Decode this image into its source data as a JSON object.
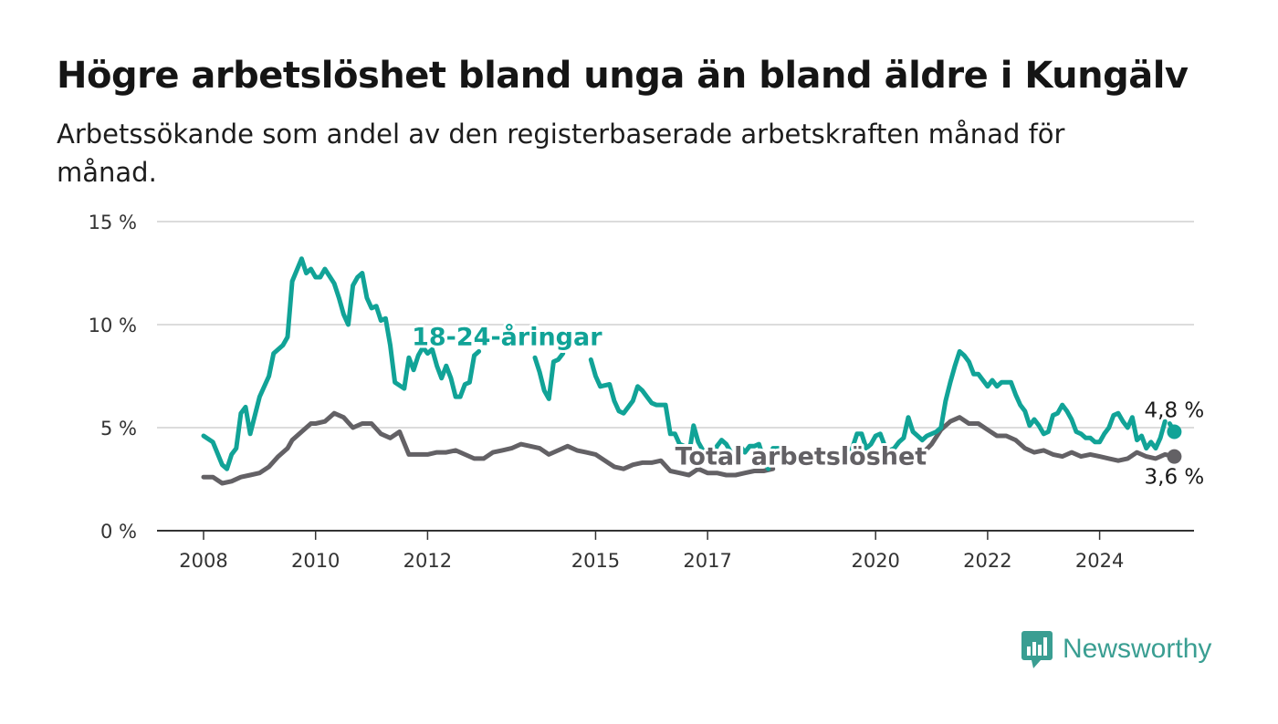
{
  "title": "Högre arbetslöshet bland unga än bland äldre i Kungälv",
  "subtitle": "Arbetssökande som andel av den registerbaserade arbetskraften månad för månad.",
  "brand": {
    "name": "Newsworthy",
    "icon": "newsworthy-logo-icon"
  },
  "chart_data": {
    "type": "line",
    "title": "Högre arbetslöshet bland unga än bland äldre i Kungälv",
    "xlabel": "",
    "ylabel": "",
    "ylim": [
      0,
      15
    ],
    "xlim": [
      "2007-10",
      "2025-08"
    ],
    "y_ticks": [
      {
        "value": 0,
        "label": "0 %"
      },
      {
        "value": 5,
        "label": "5 %"
      },
      {
        "value": 10,
        "label": "10 %"
      },
      {
        "value": 15,
        "label": "15 %"
      }
    ],
    "x_ticks": [
      {
        "value": "2008-01",
        "label": "2008"
      },
      {
        "value": "2010-01",
        "label": "2010"
      },
      {
        "value": "2012-01",
        "label": "2012"
      },
      {
        "value": "2015-01",
        "label": "2015"
      },
      {
        "value": "2017-01",
        "label": "2017"
      },
      {
        "value": "2020-01",
        "label": "2020"
      },
      {
        "value": "2022-01",
        "label": "2022"
      },
      {
        "value": "2024-01",
        "label": "2024"
      }
    ],
    "grid": true,
    "legend": "inline labels",
    "series": [
      {
        "name": "18-24-åringar",
        "color": "#11a397",
        "end_label": "4,8 %",
        "points": [
          [
            "2008-01",
            4.6
          ],
          [
            "2008-03",
            4.3
          ],
          [
            "2008-05",
            3.2
          ],
          [
            "2008-06",
            3.0
          ],
          [
            "2008-07",
            3.7
          ],
          [
            "2008-08",
            4.0
          ],
          [
            "2008-09",
            5.7
          ],
          [
            "2008-10",
            6.0
          ],
          [
            "2008-11",
            4.7
          ],
          [
            "2009-01",
            6.5
          ],
          [
            "2009-03",
            7.5
          ],
          [
            "2009-04",
            8.6
          ],
          [
            "2009-06",
            9.0
          ],
          [
            "2009-07",
            9.4
          ],
          [
            "2009-08",
            12.1
          ],
          [
            "2009-10",
            13.2
          ],
          [
            "2009-11",
            12.5
          ],
          [
            "2009-12",
            12.7
          ],
          [
            "2010-01",
            12.3
          ],
          [
            "2010-02",
            12.3
          ],
          [
            "2010-03",
            12.7
          ],
          [
            "2010-05",
            12.0
          ],
          [
            "2010-06",
            11.3
          ],
          [
            "2010-07",
            10.5
          ],
          [
            "2010-08",
            10.0
          ],
          [
            "2010-09",
            11.9
          ],
          [
            "2010-10",
            12.3
          ],
          [
            "2010-11",
            12.5
          ],
          [
            "2010-12",
            11.3
          ],
          [
            "2011-01",
            10.8
          ],
          [
            "2011-02",
            10.9
          ],
          [
            "2011-03",
            10.2
          ],
          [
            "2011-04",
            10.3
          ],
          [
            "2011-05",
            9.0
          ],
          [
            "2011-06",
            7.2
          ],
          [
            "2011-08",
            6.9
          ],
          [
            "2011-09",
            8.4
          ],
          [
            "2011-10",
            7.8
          ],
          [
            "2011-11",
            8.5
          ],
          [
            "2011-12",
            8.9
          ],
          [
            "2012-01",
            8.6
          ],
          [
            "2012-02",
            8.8
          ],
          [
            "2012-03",
            8.0
          ],
          [
            "2012-04",
            7.4
          ],
          [
            "2012-05",
            8.0
          ],
          [
            "2012-06",
            7.4
          ],
          [
            "2012-07",
            6.5
          ],
          [
            "2012-08",
            6.5
          ],
          [
            "2012-09",
            7.1
          ],
          [
            "2012-10",
            7.2
          ],
          [
            "2012-11",
            8.5
          ],
          [
            "2012-12",
            8.7
          ]
        ],
        "points_2": [
          [
            "2013-12",
            8.4
          ],
          [
            "2014-01",
            7.7
          ],
          [
            "2014-02",
            6.8
          ],
          [
            "2014-03",
            6.4
          ],
          [
            "2014-04",
            8.2
          ],
          [
            "2014-05",
            8.3
          ],
          [
            "2014-06",
            8.6
          ]
        ],
        "points_3": [
          [
            "2014-12",
            8.3
          ],
          [
            "2015-01",
            7.5
          ],
          [
            "2015-02",
            7.0
          ],
          [
            "2015-04",
            7.1
          ],
          [
            "2015-05",
            6.3
          ],
          [
            "2015-06",
            5.8
          ],
          [
            "2015-07",
            5.7
          ],
          [
            "2015-09",
            6.3
          ],
          [
            "2015-10",
            7.0
          ],
          [
            "2015-11",
            6.8
          ],
          [
            "2015-12",
            6.5
          ],
          [
            "2016-01",
            6.2
          ],
          [
            "2016-02",
            6.1
          ],
          [
            "2016-04",
            6.1
          ],
          [
            "2016-05",
            4.7
          ],
          [
            "2016-06",
            4.7
          ],
          [
            "2016-07",
            4.2
          ],
          [
            "2016-08",
            4.1
          ],
          [
            "2016-09",
            3.7
          ],
          [
            "2016-10",
            5.1
          ],
          [
            "2016-11",
            4.3
          ],
          [
            "2016-12",
            3.9
          ],
          [
            "2017-01",
            3.7
          ],
          [
            "2017-02",
            3.5
          ],
          [
            "2017-03",
            4.1
          ],
          [
            "2017-04",
            4.4
          ],
          [
            "2017-05",
            4.2
          ],
          [
            "2017-06",
            3.8
          ],
          [
            "2017-07",
            3.4
          ],
          [
            "2017-08",
            4.1
          ],
          [
            "2017-09",
            3.8
          ],
          [
            "2017-10",
            4.1
          ],
          [
            "2017-11",
            4.1
          ],
          [
            "2017-12",
            4.2
          ],
          [
            "2018-01",
            3.5
          ],
          [
            "2018-02",
            3.0
          ]
        ],
        "points_4": [
          [
            "2018-03",
            4.0
          ],
          [
            "2018-05",
            4.0
          ],
          [
            "2018-06",
            3.3
          ]
        ],
        "points_5": [
          [
            "2019-04",
            3.7
          ],
          [
            "2019-05",
            3.3
          ],
          [
            "2019-06",
            3.6
          ],
          [
            "2019-07",
            3.5
          ],
          [
            "2019-08",
            4.0
          ],
          [
            "2019-09",
            4.7
          ],
          [
            "2019-10",
            4.7
          ],
          [
            "2019-11",
            4.0
          ],
          [
            "2019-12",
            4.2
          ],
          [
            "2020-01",
            4.6
          ],
          [
            "2020-02",
            4.7
          ],
          [
            "2020-03",
            4.1
          ],
          [
            "2020-04",
            3.9
          ],
          [
            "2020-05",
            4.0
          ],
          [
            "2020-06",
            4.3
          ],
          [
            "2020-07",
            4.5
          ],
          [
            "2020-08",
            5.5
          ],
          [
            "2020-09",
            4.8
          ],
          [
            "2020-10",
            4.6
          ],
          [
            "2020-11",
            4.4
          ],
          [
            "2020-12",
            4.6
          ],
          [
            "2021-01",
            4.7
          ],
          [
            "2021-02",
            4.8
          ],
          [
            "2021-03",
            5.0
          ],
          [
            "2021-04",
            6.3
          ],
          [
            "2021-05",
            7.2
          ],
          [
            "2021-06",
            8.0
          ],
          [
            "2021-07",
            8.7
          ],
          [
            "2021-08",
            8.5
          ],
          [
            "2021-09",
            8.2
          ],
          [
            "2021-10",
            7.6
          ],
          [
            "2021-11",
            7.6
          ],
          [
            "2021-12",
            7.3
          ],
          [
            "2022-01",
            7.0
          ],
          [
            "2022-02",
            7.3
          ],
          [
            "2022-03",
            7.0
          ],
          [
            "2022-04",
            7.2
          ],
          [
            "2022-05",
            7.2
          ],
          [
            "2022-06",
            7.2
          ],
          [
            "2022-07",
            6.6
          ],
          [
            "2022-08",
            6.1
          ],
          [
            "2022-09",
            5.8
          ],
          [
            "2022-10",
            5.1
          ],
          [
            "2022-11",
            5.4
          ],
          [
            "2022-12",
            5.1
          ],
          [
            "2023-01",
            4.7
          ],
          [
            "2023-02",
            4.8
          ],
          [
            "2023-03",
            5.6
          ],
          [
            "2023-04",
            5.7
          ],
          [
            "2023-05",
            6.1
          ],
          [
            "2023-06",
            5.8
          ],
          [
            "2023-07",
            5.4
          ],
          [
            "2023-08",
            4.8
          ],
          [
            "2023-09",
            4.7
          ],
          [
            "2023-10",
            4.5
          ],
          [
            "2023-11",
            4.5
          ],
          [
            "2023-12",
            4.3
          ],
          [
            "2024-01",
            4.3
          ],
          [
            "2024-02",
            4.7
          ],
          [
            "2024-03",
            5.0
          ],
          [
            "2024-04",
            5.6
          ],
          [
            "2024-05",
            5.7
          ],
          [
            "2024-06",
            5.3
          ],
          [
            "2024-07",
            5.0
          ],
          [
            "2024-08",
            5.5
          ],
          [
            "2024-09",
            4.4
          ],
          [
            "2024-10",
            4.6
          ],
          [
            "2024-11",
            4.0
          ],
          [
            "2024-12",
            4.3
          ],
          [
            "2025-01",
            4.0
          ],
          [
            "2025-02",
            4.5
          ],
          [
            "2025-03",
            5.3
          ]
        ],
        "points_6": [
          [
            "2025-04",
            5.2
          ],
          [
            "2025-05",
            4.8
          ]
        ]
      },
      {
        "name": "Total arbetslöshet",
        "color": "#636165",
        "end_label": "3,6 %",
        "points": [
          [
            "2008-01",
            2.6
          ],
          [
            "2008-03",
            2.6
          ],
          [
            "2008-05",
            2.3
          ],
          [
            "2008-07",
            2.4
          ],
          [
            "2008-09",
            2.6
          ],
          [
            "2008-11",
            2.7
          ],
          [
            "2009-01",
            2.8
          ],
          [
            "2009-03",
            3.1
          ],
          [
            "2009-05",
            3.6
          ],
          [
            "2009-07",
            4.0
          ],
          [
            "2009-08",
            4.4
          ],
          [
            "2009-10",
            4.8
          ],
          [
            "2009-12",
            5.2
          ],
          [
            "2010-01",
            5.2
          ],
          [
            "2010-03",
            5.3
          ],
          [
            "2010-05",
            5.7
          ],
          [
            "2010-07",
            5.5
          ],
          [
            "2010-09",
            5.0
          ],
          [
            "2010-11",
            5.2
          ],
          [
            "2011-01",
            5.2
          ],
          [
            "2011-03",
            4.7
          ],
          [
            "2011-05",
            4.5
          ],
          [
            "2011-07",
            4.8
          ],
          [
            "2011-09",
            3.7
          ],
          [
            "2011-11",
            3.7
          ],
          [
            "2012-01",
            3.7
          ],
          [
            "2012-03",
            3.8
          ],
          [
            "2012-05",
            3.8
          ],
          [
            "2012-07",
            3.9
          ],
          [
            "2012-09",
            3.7
          ],
          [
            "2012-11",
            3.5
          ],
          [
            "2013-01",
            3.5
          ],
          [
            "2013-03",
            3.8
          ],
          [
            "2013-05",
            3.9
          ],
          [
            "2013-07",
            4.0
          ],
          [
            "2013-09",
            4.2
          ],
          [
            "2013-11",
            4.1
          ],
          [
            "2014-01",
            4.0
          ],
          [
            "2014-03",
            3.7
          ],
          [
            "2014-05",
            3.9
          ],
          [
            "2014-07",
            4.1
          ],
          [
            "2014-09",
            3.9
          ],
          [
            "2014-11",
            3.8
          ],
          [
            "2015-01",
            3.7
          ],
          [
            "2015-03",
            3.4
          ],
          [
            "2015-05",
            3.1
          ],
          [
            "2015-07",
            3.0
          ],
          [
            "2015-09",
            3.2
          ],
          [
            "2015-11",
            3.3
          ],
          [
            "2016-01",
            3.3
          ],
          [
            "2016-03",
            3.4
          ],
          [
            "2016-05",
            2.9
          ],
          [
            "2016-07",
            2.8
          ],
          [
            "2016-09",
            2.7
          ],
          [
            "2016-11",
            3.0
          ],
          [
            "2017-01",
            2.8
          ],
          [
            "2017-03",
            2.8
          ],
          [
            "2017-05",
            2.7
          ],
          [
            "2017-07",
            2.7
          ],
          [
            "2017-09",
            2.8
          ],
          [
            "2017-11",
            2.9
          ],
          [
            "2018-01",
            2.9
          ],
          [
            "2018-03",
            3.0
          ]
        ],
        "points_2": [
          [
            "2020-10",
            3.5
          ],
          [
            "2021-01",
            4.2
          ],
          [
            "2021-03",
            4.9
          ],
          [
            "2021-05",
            5.3
          ],
          [
            "2021-07",
            5.5
          ],
          [
            "2021-09",
            5.2
          ],
          [
            "2021-11",
            5.2
          ],
          [
            "2022-01",
            4.9
          ],
          [
            "2022-03",
            4.6
          ],
          [
            "2022-05",
            4.6
          ],
          [
            "2022-07",
            4.4
          ],
          [
            "2022-09",
            4.0
          ],
          [
            "2022-11",
            3.8
          ],
          [
            "2023-01",
            3.9
          ],
          [
            "2023-03",
            3.7
          ],
          [
            "2023-05",
            3.6
          ],
          [
            "2023-07",
            3.8
          ],
          [
            "2023-09",
            3.6
          ],
          [
            "2023-11",
            3.7
          ],
          [
            "2024-01",
            3.6
          ],
          [
            "2024-03",
            3.5
          ],
          [
            "2024-05",
            3.4
          ],
          [
            "2024-07",
            3.5
          ],
          [
            "2024-09",
            3.8
          ],
          [
            "2024-11",
            3.6
          ],
          [
            "2025-01",
            3.5
          ],
          [
            "2025-03",
            3.7
          ],
          [
            "2025-05",
            3.6
          ]
        ]
      }
    ],
    "annotations": [
      {
        "text": "18-24-åringar",
        "series": "18-24-åringar",
        "at": [
          "2013-06",
          9.0
        ]
      },
      {
        "text": "Total arbetslöshet",
        "series": "Total arbetslöshet",
        "at": [
          "2018-09",
          3.2
        ]
      }
    ]
  }
}
